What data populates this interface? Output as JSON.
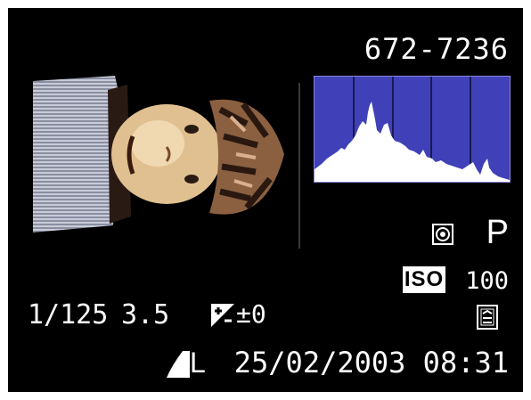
{
  "playback": {
    "file_number": "672-7236",
    "shooting_mode": "P",
    "iso_label": "ISO",
    "iso_value": "100",
    "shutter_speed": "1/125",
    "aperture": "3.5",
    "exposure_compensation": "±0",
    "image_size": "L",
    "datetime": "25/02/2003 08:31"
  },
  "icons": {
    "metering": "evaluative-metering-icon",
    "exposure_compensation": "exposure-compensation-icon",
    "white_balance": "auto-white-balance-icon",
    "quality": "fine-quality-icon"
  },
  "colors": {
    "screen_bg": "#000000",
    "histogram_bg": "#4040b8",
    "histogram_fill": "#ffffff",
    "text": "#ffffff"
  }
}
